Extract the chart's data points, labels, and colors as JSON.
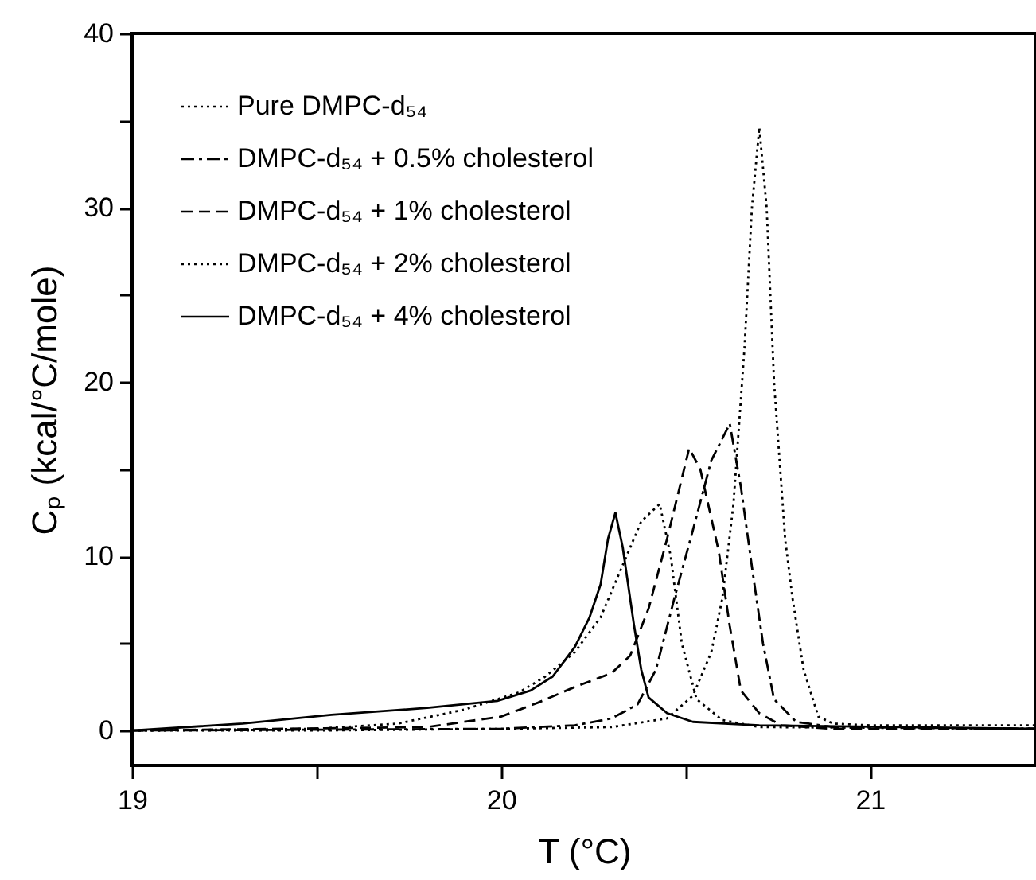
{
  "chart_data": {
    "type": "line",
    "xlabel": "T (°C)",
    "ylabel": "Cₚ (kcal/°C/mole)",
    "xlim": [
      19,
      21.45
    ],
    "ylim": [
      -2,
      40
    ],
    "xticks": [
      19,
      {
        "value": 19.5,
        "label": null
      },
      20,
      {
        "value": 20.5,
        "label": null
      },
      21
    ],
    "yticks": [
      0,
      {
        "value": 5,
        "label": null
      },
      10,
      {
        "value": 15,
        "label": null
      },
      20,
      {
        "value": 25,
        "label": null
      },
      30,
      {
        "value": 35,
        "label": null
      },
      40
    ],
    "legend": "top left",
    "grid": false,
    "series": [
      {
        "name": "Pure DMPC-d₅₄",
        "color": "#000000",
        "line_style": "dotted",
        "x": [
          19,
          19.5,
          20,
          20.3,
          20.45,
          20.52,
          20.57,
          20.6,
          20.63,
          20.66,
          20.68,
          20.7,
          20.72,
          20.74,
          20.77,
          20.79,
          20.82,
          20.86,
          20.9,
          21,
          21.45
        ],
        "values": [
          0,
          0,
          0.1,
          0.2,
          0.7,
          2,
          4.5,
          7.6,
          13,
          22,
          30,
          34.6,
          30,
          20,
          11,
          7.6,
          3.5,
          0.8,
          0.4,
          0.3,
          0.3
        ]
      },
      {
        "name": "DMPC-d₅₄ + 0.5% cholesterol",
        "color": "#000000",
        "line_style": "dashdot",
        "x": [
          19,
          20,
          20.2,
          20.3,
          20.37,
          20.42,
          20.47,
          20.52,
          20.57,
          20.62,
          20.65,
          20.68,
          20.71,
          20.74,
          20.8,
          20.9,
          21.45
        ],
        "values": [
          0,
          0.1,
          0.3,
          0.7,
          1.5,
          3.5,
          7.6,
          11.5,
          15.5,
          17.6,
          14,
          9.4,
          5,
          1.8,
          0.5,
          0.2,
          0.1
        ]
      },
      {
        "name": "DMPC-d₅₄ + 1% cholesterol",
        "color": "#000000",
        "line_style": "dashed",
        "x": [
          19,
          19.8,
          20,
          20.1,
          20.2,
          20.3,
          20.35,
          20.4,
          20.45,
          20.51,
          20.54,
          20.59,
          20.62,
          20.65,
          20.7,
          20.76,
          20.9,
          21.45
        ],
        "values": [
          0,
          0.2,
          0.8,
          1.6,
          2.5,
          3.3,
          4.3,
          7,
          11,
          16.2,
          15,
          10.3,
          6,
          2.3,
          1,
          0.3,
          0.1,
          0.1
        ]
      },
      {
        "name": "DMPC-d₅₄ + 2% cholesterol",
        "color": "#000000",
        "line_style": "dotted",
        "x": [
          19,
          19.5,
          19.72,
          19.9,
          20.05,
          20.12,
          20.2,
          20.27,
          20.33,
          20.38,
          20.43,
          20.46,
          20.49,
          20.53,
          20.6,
          20.7,
          21.45
        ],
        "values": [
          0,
          0.1,
          0.4,
          1.2,
          2.2,
          3.1,
          4.5,
          6.5,
          9.5,
          12,
          13,
          10,
          5,
          1.8,
          0.6,
          0.2,
          0.1
        ]
      },
      {
        "name": "DMPC-d₅₄ + 4% cholesterol",
        "color": "#000000",
        "line_style": "solid",
        "x": [
          19,
          19.3,
          19.54,
          19.8,
          19.99,
          20.08,
          20.14,
          20.2,
          20.24,
          20.27,
          20.29,
          20.31,
          20.33,
          20.36,
          20.38,
          20.4,
          20.45,
          20.52,
          20.7,
          21.45
        ],
        "values": [
          0,
          0.4,
          0.9,
          1.3,
          1.7,
          2.3,
          3.1,
          4.8,
          6.5,
          8.4,
          11,
          12.5,
          10.5,
          6.1,
          3.5,
          1.9,
          1,
          0.5,
          0.3,
          0.1
        ]
      }
    ]
  }
}
